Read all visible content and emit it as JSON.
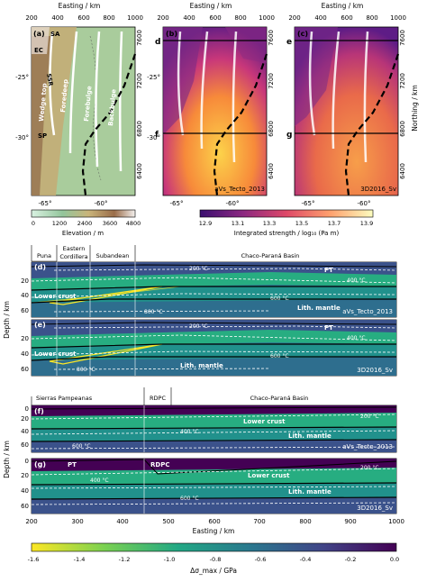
{
  "maps": {
    "top_axis_label": "Easting / km",
    "right_axis_label": "Northing / km",
    "easting_ticks": [
      "200",
      "400",
      "600",
      "800",
      "1000"
    ],
    "northing_ticks": [
      "7600",
      "7200",
      "6800",
      "6400"
    ],
    "lat_ticks": [
      "-25°",
      "-30°"
    ],
    "lon_ticks": [
      "-65°",
      "-60°"
    ],
    "panel_a": {
      "label": "(a)",
      "tags": [
        "EC",
        "SA",
        "SSR",
        "SP"
      ],
      "belts": [
        "Wedge top",
        "Foredeep",
        "Forebulge",
        "Backbulge"
      ]
    },
    "panel_b": {
      "label": "(b)",
      "name": "aVs_Tecto_2013",
      "profiles": [
        "d",
        "f"
      ]
    },
    "panel_c": {
      "label": "(c)",
      "name": "3D2016_Sv",
      "profiles": [
        "e",
        "g"
      ]
    },
    "elevation_cbar": {
      "label": "Elevation / m",
      "ticks": [
        "0",
        "1200",
        "2400",
        "3600",
        "4800"
      ]
    },
    "strength_cbar": {
      "label": "Integrated strength / log₁₀ (Pa m)",
      "ticks": [
        "12.9",
        "13.1",
        "13.3",
        "13.5",
        "13.7",
        "13.9"
      ]
    }
  },
  "sections": {
    "y_label": "Depth / km",
    "x_label": "Easting / km",
    "x_ticks": [
      "200",
      "300",
      "400",
      "500",
      "600",
      "700",
      "800",
      "900",
      "1000"
    ],
    "depth_ticks": [
      "0",
      "20",
      "40",
      "60"
    ],
    "top_header": {
      "provinces": [
        "Puna",
        "Eastern",
        "Cordillera",
        "Subandean",
        "Chaco-Paraná Basin"
      ]
    },
    "mid_header": {
      "provinces": [
        "Sierras Pampeanas",
        "RDPC",
        "Chaco-Paraná Basin"
      ]
    },
    "panel_d": {
      "label": "(d)",
      "name": "aVs_Tecto_2013",
      "tags": [
        "Lower crust",
        "Lith. mantle",
        "PT"
      ],
      "isotherms": [
        "200 °C",
        "400 °C",
        "600 °C",
        "800 °C"
      ]
    },
    "panel_e": {
      "label": "(e)",
      "name": "3D2016_Sv",
      "tags": [
        "Lower crust",
        "Lith. mantle",
        "PT"
      ],
      "isotherms": [
        "200 °C",
        "400 °C",
        "600 °C",
        "800 °C"
      ]
    },
    "panel_f": {
      "label": "(f)",
      "name": "aVs_Tecto_2013",
      "tags": [
        "Lower crust",
        "Lith. mantle"
      ],
      "isotherms": [
        "200 °C",
        "400 °C",
        "600 °C"
      ]
    },
    "panel_g": {
      "label": "(g)",
      "name": "3D2016_Sv",
      "tags": [
        "PT",
        "RDPC",
        "Lower crust",
        "Lith. mantle"
      ],
      "isotherms": [
        "200 °C",
        "400 °C",
        "600 °C"
      ]
    }
  },
  "stress_cbar": {
    "label": "Δσ_max / GPa",
    "ticks": [
      "-1.6",
      "-1.4",
      "-1.2",
      "-1.0",
      "-0.8",
      "-0.6",
      "-0.4",
      "-0.2",
      "0.0"
    ]
  }
}
